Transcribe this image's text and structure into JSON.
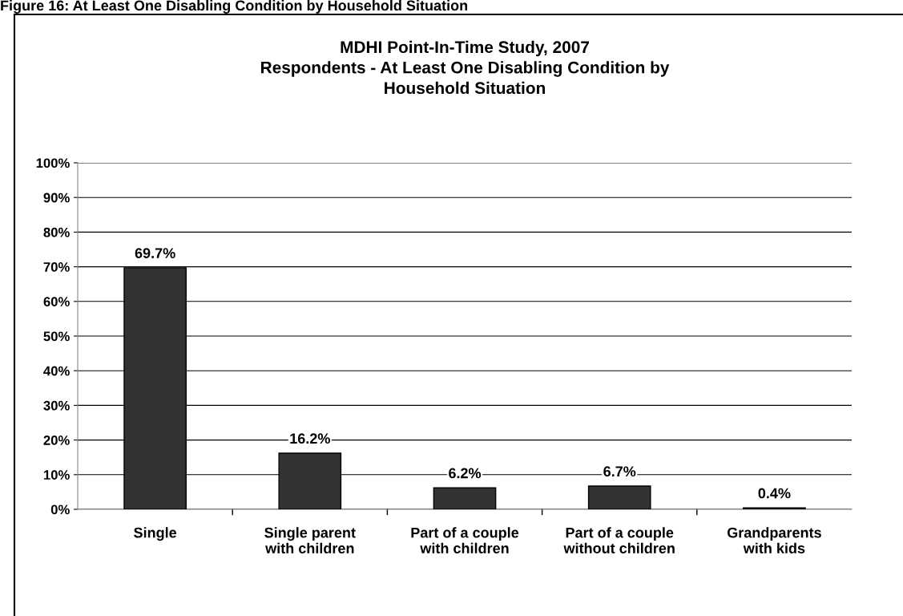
{
  "chart_data": {
    "type": "bar",
    "title": "MDHI Point-In-Time Study, 2007\nRespondents - At Least One Disabling Condition by\nHousehold Situation",
    "annotations": [
      "Figure 16: At Least One Disabling Condition by Household Situation"
    ],
    "categories": [
      "Single",
      "Single parent\nwith children",
      "Part of a couple\nwith children",
      "Part of a couple\nwithout children",
      "Grandparents\nwith kids"
    ],
    "values": [
      69.7,
      16.2,
      6.2,
      6.7,
      0.4
    ],
    "value_labels": [
      "69.7%",
      "16.2%",
      "6.2%",
      "6.7%",
      "0.4%"
    ],
    "color": "#333333",
    "ylim": [
      0,
      100
    ],
    "yticks": [
      {
        "value": 0,
        "label": "0%"
      },
      {
        "value": 10,
        "label": "10%"
      },
      {
        "value": 20,
        "label": "20%"
      },
      {
        "value": 30,
        "label": "30%"
      },
      {
        "value": 40,
        "label": "40%"
      },
      {
        "value": 50,
        "label": "50%"
      },
      {
        "value": 60,
        "label": "60%"
      },
      {
        "value": 70,
        "label": "70%"
      },
      {
        "value": 80,
        "label": "80%"
      },
      {
        "value": 90,
        "label": "90%"
      },
      {
        "value": 100,
        "label": "100%"
      }
    ],
    "grid": "y",
    "legend": false
  }
}
